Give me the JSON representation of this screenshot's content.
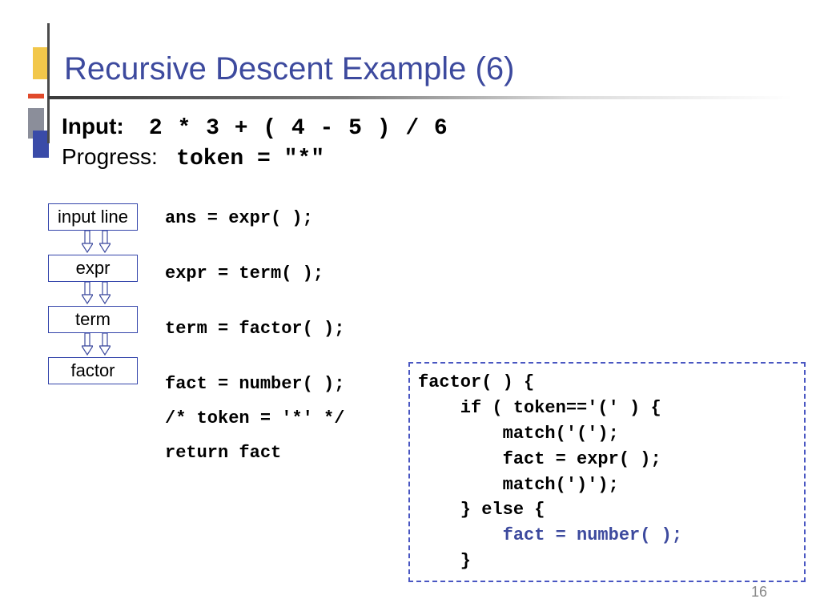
{
  "title": "Recursive Descent Example (6)",
  "input": {
    "label": "Input:",
    "value": "2 * 3 + ( 4 - 5 ) / 6"
  },
  "progress": {
    "label": "Progress:",
    "value": "token = \"*\""
  },
  "flow": {
    "boxes": [
      "input line",
      "expr",
      "term",
      "factor"
    ],
    "box_border_color": "#3344aa",
    "arrow_color": "#3d4a9e"
  },
  "trace": {
    "lines": [
      "ans = expr( );",
      "expr = term( );",
      "term = factor( );"
    ],
    "tight": [
      "fact = number( );",
      "/* token = '*' */",
      "return fact"
    ]
  },
  "code": {
    "border_color": "#4a57c2",
    "highlight_color": "#3d4a9e",
    "lines": [
      {
        "t": "factor( ) {",
        "hl": false,
        "indent": 0
      },
      {
        "t": "if ( token=='(' ) {",
        "hl": false,
        "indent": 1
      },
      {
        "t": "match('(');",
        "hl": false,
        "indent": 2
      },
      {
        "t": "fact = expr( );",
        "hl": false,
        "indent": 2
      },
      {
        "t": "match(')');",
        "hl": false,
        "indent": 2
      },
      {
        "t": "} else {",
        "hl": false,
        "indent": 1
      },
      {
        "t": "fact = number( );",
        "hl": true,
        "indent": 2
      },
      {
        "t": "}",
        "hl": false,
        "indent": 1
      }
    ]
  },
  "page_number": "16",
  "colors": {
    "title": "#3d4a9e",
    "ornament_yellow": "#f2c74a",
    "ornament_gray": "#8b8e9a",
    "ornament_blue": "#3a4ba8",
    "ornament_red": "#e04a2b"
  }
}
